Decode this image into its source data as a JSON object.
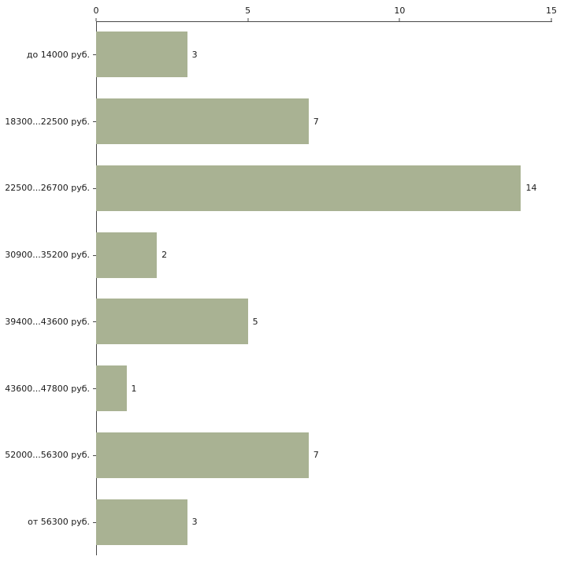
{
  "chart_data": {
    "type": "bar",
    "orientation": "horizontal",
    "title": "",
    "xlabel": "",
    "ylabel": "",
    "categories": [
      "до 14000 руб.",
      "18300...22500 руб.",
      "22500...26700 руб.",
      "30900...35200 руб.",
      "39400...43600 руб.",
      "43600...47800 руб.",
      "52000...56300 руб.",
      "от 56300 руб."
    ],
    "values": [
      3,
      7,
      14,
      2,
      5,
      1,
      7,
      3
    ],
    "xlim": [
      0,
      15
    ],
    "xticks": [
      0,
      5,
      10,
      15
    ],
    "grid": false,
    "legend": false,
    "value_labels": true,
    "bar_color": "#a9b293",
    "axis_color": "#474747",
    "text_color": "#1a1a1a",
    "background_color": "#ffffff"
  }
}
